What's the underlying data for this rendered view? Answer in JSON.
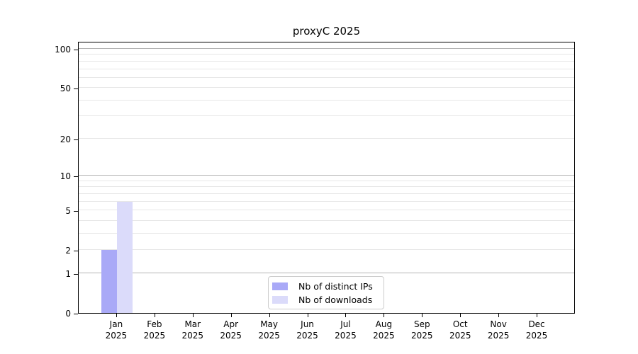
{
  "chart_data": {
    "type": "bar",
    "title": "proxyC 2025",
    "categories": [
      "Jan\n2025",
      "Feb\n2025",
      "Mar\n2025",
      "Apr\n2025",
      "May\n2025",
      "Jun\n2025",
      "Jul\n2025",
      "Aug\n2025",
      "Sep\n2025",
      "Oct\n2025",
      "Nov\n2025",
      "Dec\n2025"
    ],
    "series": [
      {
        "name": "Nb of distinct IPs",
        "color": "#a9a9f7",
        "values": [
          2,
          0,
          0,
          0,
          0,
          0,
          0,
          0,
          0,
          0,
          0,
          0
        ]
      },
      {
        "name": "Nb of downloads",
        "color": "#dbdbfa",
        "values": [
          6,
          0,
          0,
          0,
          0,
          0,
          0,
          0,
          0,
          0,
          0,
          0
        ]
      }
    ],
    "y_axis": {
      "scale": "log1p",
      "ylim": [
        0,
        100
      ],
      "ticks": [
        0,
        1,
        2,
        5,
        10,
        20,
        50,
        100
      ],
      "major_gridlines": [
        1,
        10,
        100
      ],
      "minor_gridlines": [
        2,
        3,
        4,
        5,
        6,
        7,
        8,
        9,
        20,
        30,
        40,
        50,
        60,
        70,
        80,
        90
      ]
    },
    "legend": {
      "position": "lower center"
    },
    "grid": true
  },
  "colors": {
    "background": "#ffffff",
    "axis": "#000000",
    "major_gridline": "#b4b4b4",
    "minor_gridline": "#e7e7e7"
  }
}
